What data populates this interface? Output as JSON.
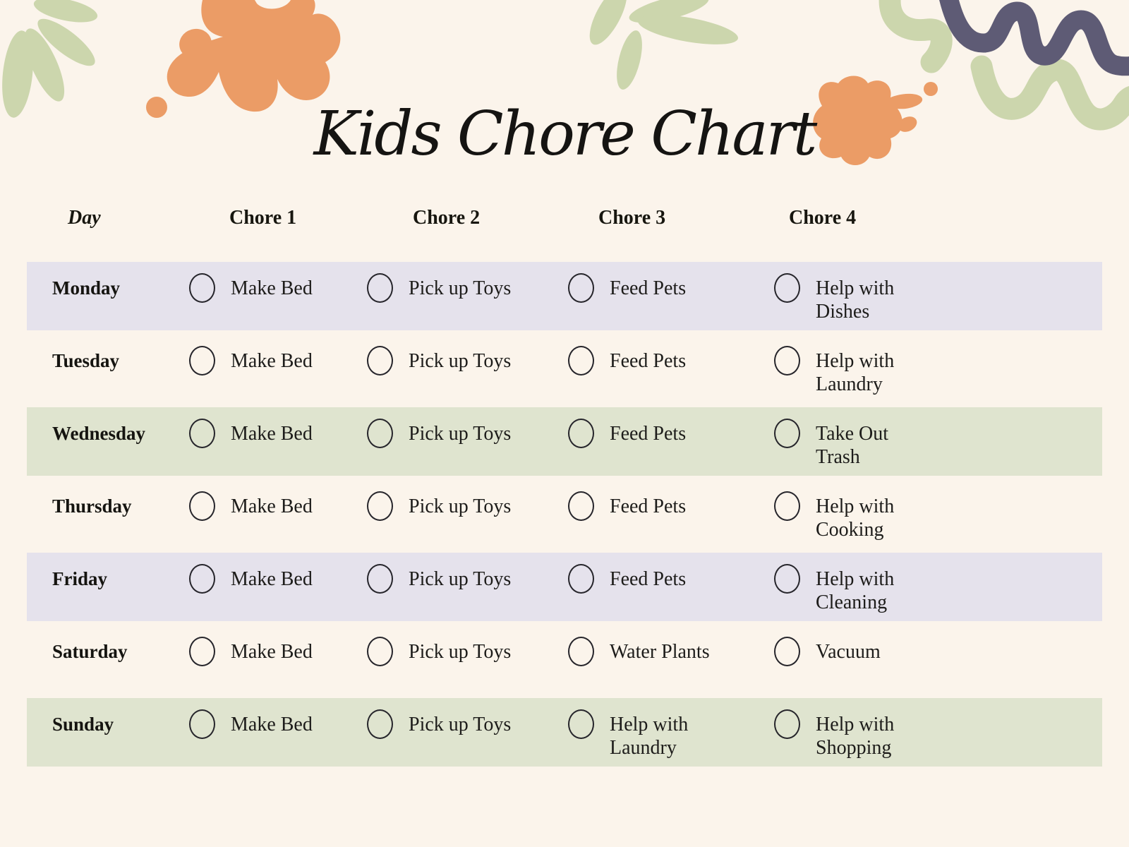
{
  "title": "Kids Chore Chart",
  "table": {
    "headers": [
      "Day",
      "Chore 1",
      "Chore 2",
      "Chore 3",
      "Chore 4"
    ],
    "rows": [
      {
        "day": "Monday",
        "band": "lavender",
        "chores": [
          {
            "label": "Make Bed",
            "checked": false
          },
          {
            "label": "Pick up Toys",
            "checked": false
          },
          {
            "label": "Feed Pets",
            "checked": false
          },
          {
            "label": "Help with\nDishes",
            "checked": false
          }
        ]
      },
      {
        "day": "Tuesday",
        "band": "cream",
        "chores": [
          {
            "label": "Make Bed",
            "checked": false
          },
          {
            "label": "Pick up Toys",
            "checked": false
          },
          {
            "label": "Feed Pets",
            "checked": false
          },
          {
            "label": "Help with\nLaundry",
            "checked": false
          }
        ]
      },
      {
        "day": "Wednesday",
        "band": "green",
        "chores": [
          {
            "label": "Make Bed",
            "checked": false
          },
          {
            "label": "Pick up Toys",
            "checked": false
          },
          {
            "label": "Feed Pets",
            "checked": false
          },
          {
            "label": "Take Out\nTrash",
            "checked": false
          }
        ]
      },
      {
        "day": "Thursday",
        "band": "cream",
        "chores": [
          {
            "label": "Make Bed",
            "checked": false
          },
          {
            "label": "Pick up Toys",
            "checked": false
          },
          {
            "label": "Feed Pets",
            "checked": false
          },
          {
            "label": "Help with\nCooking",
            "checked": false
          }
        ]
      },
      {
        "day": "Friday",
        "band": "lavender",
        "chores": [
          {
            "label": "Make Bed",
            "checked": false
          },
          {
            "label": "Pick up Toys",
            "checked": false
          },
          {
            "label": "Feed Pets",
            "checked": false
          },
          {
            "label": "Help with\nCleaning",
            "checked": false
          }
        ]
      },
      {
        "day": "Saturday",
        "band": "cream",
        "chores": [
          {
            "label": "Make Bed",
            "checked": false
          },
          {
            "label": "Pick up Toys",
            "checked": false
          },
          {
            "label": "Water Plants",
            "checked": false
          },
          {
            "label": "Vacuum",
            "checked": false
          }
        ]
      },
      {
        "day": "Sunday",
        "band": "green",
        "chores": [
          {
            "label": "Make Bed",
            "checked": false
          },
          {
            "label": "Pick up Toys",
            "checked": false
          },
          {
            "label": "Help with\nLaundry",
            "checked": false
          },
          {
            "label": "Help with\nShopping",
            "checked": false
          }
        ]
      }
    ]
  },
  "decorations": {
    "top_left": "leaf-frond",
    "top_center_left": "paint-splat-large",
    "top_center": "leaf-sprig",
    "top_right": [
      "wave-squiggle-green",
      "wave-squiggle-purple",
      "paint-splat-small"
    ]
  },
  "colors": {
    "background": "#fbf4eb",
    "band_lavender": "#e5e2ec",
    "band_green": "#dfe4cf",
    "accent_orange": "#eb9c66",
    "accent_sage": "#ccd6ad",
    "accent_purple": "#5e5b75",
    "ink": "#1c1b1a"
  }
}
